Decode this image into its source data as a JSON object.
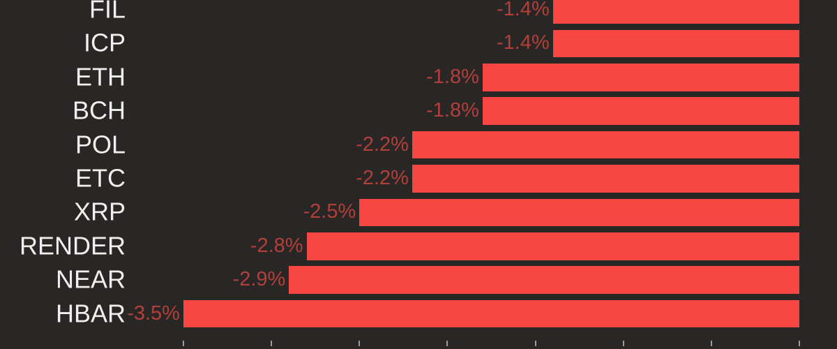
{
  "chart_data": {
    "type": "bar",
    "orientation": "horizontal",
    "title": "",
    "categories": [
      "FIL",
      "ICP",
      "ETH",
      "BCH",
      "POL",
      "ETC",
      "XRP",
      "RENDER",
      "NEAR",
      "HBAR"
    ],
    "values": [
      -1.4,
      -1.4,
      -1.8,
      -1.8,
      -2.2,
      -2.2,
      -2.5,
      -2.8,
      -2.9,
      -3.5
    ],
    "value_labels": [
      "-1.4%",
      "-1.4%",
      "-1.8%",
      "-1.8%",
      "-2.2%",
      "-2.2%",
      "-2.5%",
      "-2.8%",
      "-2.9%",
      "-3.5%"
    ],
    "xlabel": "",
    "ylabel": "",
    "xlim": [
      -3.5,
      0
    ],
    "x_tick_step": 0.5,
    "x_tick_values": [
      0,
      -0.5,
      -1.0,
      -1.5,
      -2.0,
      -2.5,
      -3.0,
      -3.5
    ],
    "x_tick_labels_visible": false,
    "grid": false,
    "legend": null,
    "bars_anchored_at": "right"
  },
  "colors": {
    "background": "#292726",
    "bar": "#f84743",
    "value_label": "#b23f3a",
    "category_label": "#f0efee",
    "tick": "#9b9b9b",
    "clipped_bar": "#a83b39"
  }
}
